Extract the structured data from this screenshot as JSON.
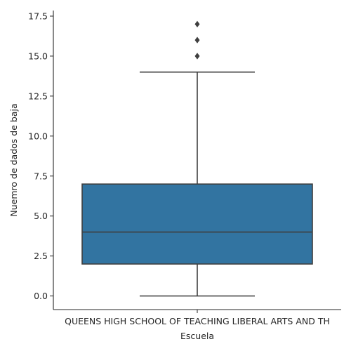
{
  "chart_data": {
    "type": "box",
    "title": "",
    "xlabel": "Escuela",
    "ylabel": "Nuemro de dados de baja",
    "categories": [
      "QUEENS HIGH SCHOOL OF TEACHING LIBERAL ARTS AND TH"
    ],
    "boxes": [
      {
        "category": "QUEENS HIGH SCHOOL OF TEACHING LIBERAL ARTS AND TH",
        "whisker_low": 0,
        "q1": 2,
        "median": 4,
        "q3": 7,
        "whisker_high": 14,
        "outliers": [
          15,
          16,
          17
        ]
      }
    ],
    "ylim": [
      -0.85,
      17.85
    ],
    "yticks": [
      0.0,
      2.5,
      5.0,
      7.5,
      10.0,
      12.5,
      15.0,
      17.5
    ],
    "ytick_labels": [
      "0.0",
      "2.5",
      "5.0",
      "7.5",
      "10.0",
      "12.5",
      "15.0",
      "17.5"
    ],
    "grid": false,
    "colors": {
      "box_fill": "#3274a1",
      "line": "#3f3f3f",
      "axis": "#262626"
    }
  }
}
